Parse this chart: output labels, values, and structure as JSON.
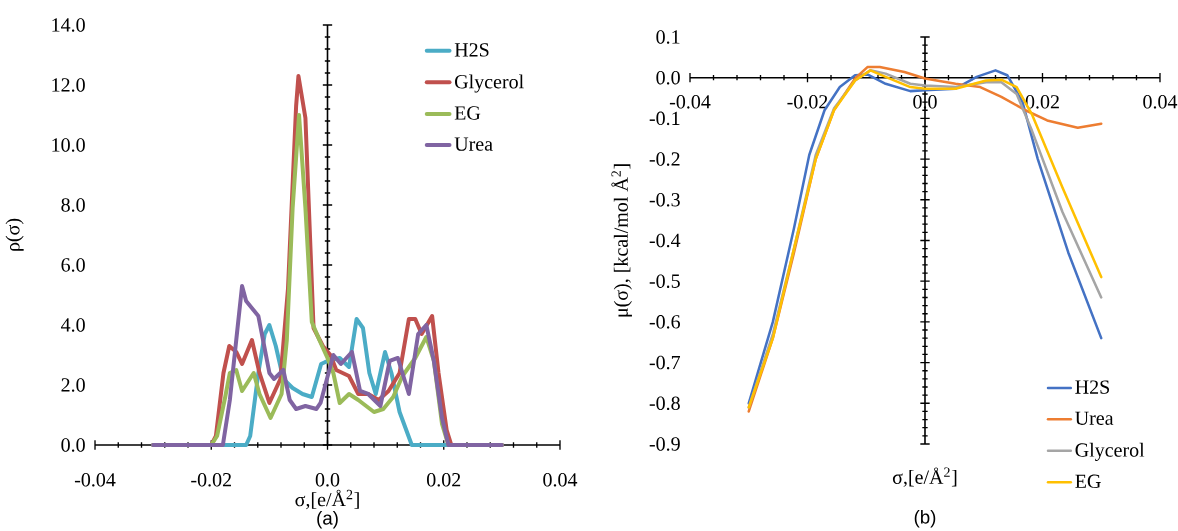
{
  "chart_data": [
    {
      "type": "line",
      "xlabel": "σ,[e/Å$^{2}$]",
      "ylabel": "ρ(σ)",
      "annotations": [
        "(a)"
      ],
      "xlim": [
        -0.04,
        0.04
      ],
      "ylim": [
        0,
        14
      ],
      "xticks": [
        -0.04,
        -0.02,
        {
          "value": 0,
          "label": "0.0"
        },
        0.02,
        0.04
      ],
      "yticks": [
        {
          "value": 0,
          "label": "0.0"
        },
        {
          "value": 2,
          "label": "2.0"
        },
        {
          "value": 4,
          "label": "4.0"
        },
        {
          "value": 6,
          "label": "6.0"
        },
        {
          "value": 8,
          "label": "8.0"
        },
        {
          "value": 10,
          "label": "10.0"
        },
        {
          "value": 12,
          "label": "12.0"
        },
        {
          "value": 14,
          "label": "14.0"
        }
      ],
      "legend": "top right",
      "series": [
        {
          "name": "H2S",
          "color": "#4bacc6",
          "x": [
            -0.03,
            -0.014,
            -0.0133,
            -0.0119,
            -0.0108,
            -0.01,
            -0.0089,
            -0.0076,
            -0.006,
            -0.0043,
            -0.0027,
            -0.0011,
            0,
            0.0021,
            0.0037,
            0.005,
            0.0061,
            0.0072,
            0.0083,
            0.0099,
            0.011,
            0.0124,
            0.0145,
            0.03
          ],
          "values": [
            0,
            0,
            0.3,
            2.4,
            3.7,
            4.0,
            3.3,
            2.2,
            1.9,
            1.7,
            1.6,
            2.7,
            2.8,
            2.9,
            2.6,
            4.2,
            3.9,
            2.4,
            1.7,
            3.1,
            2.4,
            1.1,
            0,
            0
          ]
        },
        {
          "name": "Glycerol",
          "color": "#c0504d",
          "x": [
            -0.03,
            -0.02,
            -0.0192,
            -0.0179,
            -0.0169,
            -0.0157,
            -0.0147,
            -0.013,
            -0.0117,
            -0.01,
            -0.0081,
            -0.0068,
            -0.0054,
            -0.005,
            -0.0038,
            -0.0024,
            -0.0008,
            0.0005,
            0.0015,
            0.0037,
            0.0053,
            0.007,
            0.0088,
            0.0105,
            0.0124,
            0.014,
            0.0151,
            0.0162,
            0.018,
            0.0191,
            0.0205,
            0.0213,
            0.03
          ],
          "values": [
            0,
            0,
            0.3,
            2.4,
            3.3,
            3.1,
            2.7,
            3.5,
            2.4,
            1.4,
            2.2,
            5.2,
            11.3,
            12.3,
            10.9,
            3.9,
            3.3,
            3.0,
            2.5,
            2.3,
            1.7,
            1.7,
            1.5,
            1.8,
            2.4,
            4.2,
            4.2,
            3.7,
            4.3,
            2.4,
            0.5,
            0,
            0
          ]
        },
        {
          "name": "EG",
          "color": "#9bbb59",
          "x": [
            -0.03,
            -0.02,
            -0.019,
            -0.0176,
            -0.0168,
            -0.0157,
            -0.0147,
            -0.0127,
            -0.0117,
            -0.0098,
            -0.0079,
            -0.007,
            -0.006,
            -0.0049,
            -0.0038,
            -0.0027,
            -0.0014,
            0,
            0.001,
            0.0021,
            0.0037,
            0.0053,
            0.008,
            0.0096,
            0.0113,
            0.0129,
            0.0151,
            0.017,
            0.0183,
            0.0197,
            0.0208,
            0.03
          ],
          "values": [
            0,
            0,
            0.3,
            1.6,
            2.4,
            2.5,
            1.8,
            2.4,
            1.7,
            0.9,
            1.7,
            3.5,
            7.9,
            11.0,
            7.9,
            4.1,
            3.5,
            2.9,
            2.4,
            1.4,
            1.7,
            1.5,
            1.1,
            1.2,
            1.6,
            2.3,
            2.9,
            3.6,
            2.8,
            0.7,
            0,
            0
          ]
        },
        {
          "name": "Urea",
          "color": "#8064a2",
          "x": [
            -0.03,
            -0.018,
            -0.0168,
            -0.0157,
            -0.0147,
            -0.014,
            -0.0119,
            -0.01,
            -0.0092,
            -0.0076,
            -0.0065,
            -0.0054,
            -0.0038,
            -0.0019,
            -0.0012,
            0.001,
            0.0023,
            0.0042,
            0.0056,
            0.007,
            0.0091,
            0.0107,
            0.0121,
            0.014,
            0.0156,
            0.017,
            0.0183,
            0.0197,
            0.0208,
            0.03
          ],
          "values": [
            0,
            0,
            1.5,
            3.5,
            5.3,
            4.8,
            4.3,
            2.4,
            2.2,
            2.5,
            1.5,
            1.2,
            1.3,
            1.2,
            1.4,
            3.0,
            2.7,
            3.1,
            1.8,
            1.7,
            1.3,
            2.8,
            2.9,
            1.7,
            3.7,
            4.0,
            2.8,
            0.9,
            0,
            0
          ]
        }
      ]
    },
    {
      "type": "line",
      "xlabel": "σ,[e/Å$^{2}$]",
      "ylabel": "μ(σ), [kcal/mol Å$^{2}$]",
      "annotations": [
        "(b)"
      ],
      "xlim": [
        -0.04,
        0.04
      ],
      "ylim": [
        -0.9,
        0.1
      ],
      "xticks": [
        -0.04,
        -0.02,
        {
          "value": 0,
          "label": "0.0"
        },
        0.02,
        0.04
      ],
      "yticks": [
        -0.9,
        -0.8,
        -0.7,
        -0.6,
        -0.5,
        -0.4,
        -0.3,
        -0.2,
        -0.1,
        {
          "value": 0,
          "label": "0.0"
        },
        0.1
      ],
      "legend": "bottom right",
      "series": [
        {
          "name": "H2S",
          "color": "#4472c4",
          "x": [
            -0.03,
            -0.0259,
            -0.0223,
            -0.0197,
            -0.0171,
            -0.0145,
            -0.0119,
            -0.0098,
            -0.0067,
            -0.0025,
            0,
            0.0052,
            0.0088,
            0.012,
            0.014,
            0.0166,
            0.0192,
            0.0244,
            0.03
          ],
          "values": [
            -0.8,
            -0.6,
            -0.37,
            -0.19,
            -0.08,
            -0.023,
            0.006,
            0.008,
            -0.015,
            -0.033,
            -0.031,
            -0.027,
            0.002,
            0.018,
            0.006,
            -0.06,
            -0.2,
            -0.43,
            -0.64
          ]
        },
        {
          "name": "Urea",
          "color": "#ed7d31",
          "x": [
            -0.03,
            -0.0259,
            -0.0223,
            -0.0186,
            -0.0155,
            -0.0119,
            -0.0098,
            -0.0077,
            -0.0035,
            0,
            0.0052,
            0.0094,
            0.013,
            0.0171,
            0.0208,
            0.026,
            0.03
          ],
          "values": [
            -0.82,
            -0.64,
            -0.43,
            -0.2,
            -0.08,
            -0.002,
            0.026,
            0.026,
            0.014,
            -0.002,
            -0.015,
            -0.023,
            -0.047,
            -0.08,
            -0.105,
            -0.123,
            -0.113
          ]
        },
        {
          "name": "Glycerol",
          "color": "#a5a5a5",
          "x": [
            -0.03,
            -0.0259,
            -0.0223,
            -0.0186,
            -0.0155,
            -0.0119,
            -0.0093,
            -0.0067,
            -0.0025,
            0,
            0.0052,
            0.0104,
            0.013,
            0.0156,
            0.0182,
            0.0234,
            0.03
          ],
          "values": [
            -0.81,
            -0.63,
            -0.42,
            -0.19,
            -0.076,
            -0.007,
            0.018,
            0.01,
            -0.015,
            -0.019,
            -0.023,
            -0.011,
            -0.011,
            -0.04,
            -0.13,
            -0.33,
            -0.54
          ]
        },
        {
          "name": "EG",
          "color": "#ffc000",
          "x": [
            -0.03,
            -0.0259,
            -0.0223,
            -0.0186,
            -0.0155,
            -0.0119,
            -0.0093,
            -0.0067,
            -0.0025,
            0,
            0.0052,
            0.0104,
            0.013,
            0.0156,
            0.0182,
            0.0234,
            0.03
          ],
          "values": [
            -0.81,
            -0.64,
            -0.42,
            -0.2,
            -0.08,
            -0.007,
            0.018,
            0.002,
            -0.023,
            -0.027,
            -0.027,
            -0.007,
            -0.005,
            -0.023,
            -0.09,
            -0.27,
            -0.49
          ]
        }
      ]
    }
  ]
}
